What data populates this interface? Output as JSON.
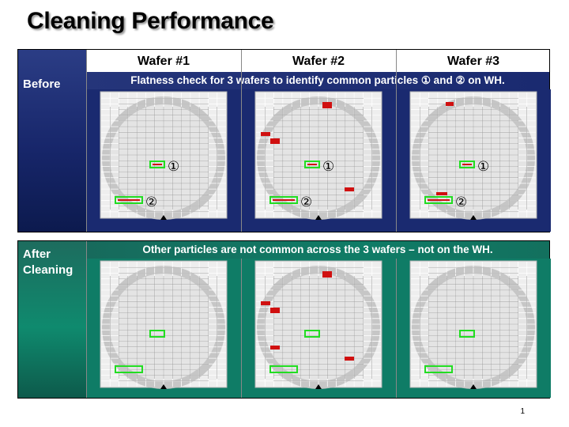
{
  "title": "Cleaning Performance",
  "columns": [
    "Wafer #1",
    "Wafer #2",
    "Wafer #3"
  ],
  "before": {
    "label": "Before",
    "note": "Flatness check for 3 wafers to identify common particles ① and ② on WH."
  },
  "after": {
    "label": "After\nCleaning",
    "note": "Other particles are not common across the 3 wafers – not on the WH."
  },
  "markers": [
    "①",
    "②"
  ],
  "page_number": "1",
  "colors": {
    "before_accent": "#1a2a70",
    "after_accent": "#0f7c66",
    "particle": "#d01010",
    "common_highlight": "#22dd22"
  }
}
